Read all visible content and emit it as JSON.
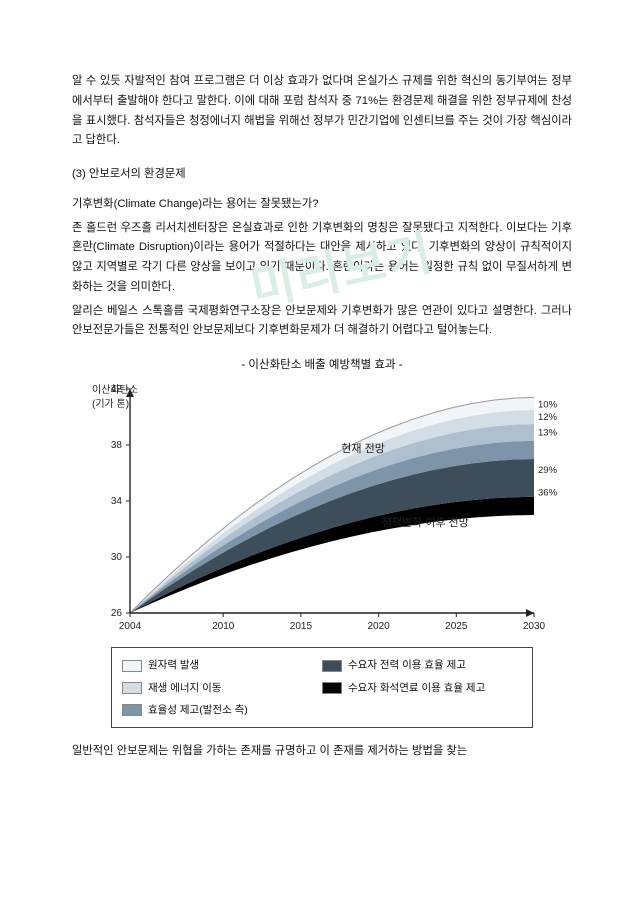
{
  "watermark": "미리보기",
  "para1": "알 수 있듯 자발적인 참여 프로그램은 더 이상 효과가 없다며 온실가스 규제를 위한 혁신의 동기부여는 정부에서부터 출발해야 한다고 말한다. 이에 대해 포럼 참석자 중 71%는 환경문제 해결을 위한 정부규제에 찬성을 표시했다. 참석자들은 청정에너지 해법을 위해선 정부가 민간기업에 인센티브를 주는 것이 가장 핵심이라고 답한다.",
  "section_head": "(3) 안보로서의 환경문제",
  "para2a": "기후변화(Climate Change)라는 용어는 잘못됐는가?",
  "para2b": "존 홀드런 우즈홀 리서치센터장은 온실효과로 인한 기후변화의 명칭은 잘못됐다고 지적한다. 이보다는 기후혼란(Climate Disruption)이라는 용어가 적절하다는 대안을 제시하고 있다. 기후변화의 양상이 규칙적이지 않고 지역별로 각기 다른 양상을 보이고 있기 때문이다. 혼란이라는 용어는 일정한 규칙 없이 무질서하게 변화하는 것을 의미한다.",
  "para2c": "알리슨 베일스 스톡홀름 국제평화연구소장은 안보문제와 기후변화가 많은 연관이 있다고 설명한다. 그러나 안보전문가들은 전통적인 안보문제보다 기후변화문제가 더 해결하기 어렵다고 털어놓는다.",
  "chart": {
    "title": "- 이산화탄소 배출 예방책별 효과 -",
    "y_label_a": "이산화탄소",
    "y_label_b": "(기가 톤)",
    "y_ticks": [
      26,
      30,
      34,
      38,
      42
    ],
    "x_ticks": [
      2004,
      2010,
      2015,
      2020,
      2025,
      2030
    ],
    "annot_top": "현재 전망",
    "annot_bottom": "정책변화 이후 전망",
    "right_labels": [
      {
        "text": "10%",
        "color": "#d3dde6"
      },
      {
        "text": "12%",
        "color": "#aebfd0"
      },
      {
        "text": "13%",
        "color": "#7e94a8"
      },
      {
        "text": "29%",
        "color": "#3d4d5a"
      },
      {
        "text": "36%",
        "color": "#000000"
      }
    ],
    "bands": [
      {
        "color": "#000000",
        "end": 34.3
      },
      {
        "color": "#3d4d5a",
        "end": 37.0
      },
      {
        "color": "#7e94a8",
        "end": 38.3
      },
      {
        "color": "#aebfd0",
        "end": 39.5
      },
      {
        "color": "#d3dde6",
        "end": 40.5
      },
      {
        "color": "#f2f5f8",
        "end": 41.4
      }
    ],
    "plot": {
      "bg": "#ffffff",
      "axis": "#222222",
      "grid": "#bbbbbb",
      "text": "#222222",
      "font_axis": 10,
      "font_annot": 11
    }
  },
  "legend": {
    "items": [
      {
        "label": "원자력 발생",
        "color": "#f2f5f8"
      },
      {
        "label": "수요자 전력 이용 효율 제고",
        "color": "#3d4d5a"
      },
      {
        "label": "재생 에너지 이동",
        "color": "#d3dde6"
      },
      {
        "label": "수요자 화석연료 이용 효율 제고",
        "color": "#000000"
      },
      {
        "label": "효율성 제고(발전소 측)",
        "color": "#7e94a8"
      }
    ]
  },
  "para3": "일반적인 안보문제는 위협을 가하는 존재를 규명하고 이 존재를 제거하는 방법을 찾는"
}
